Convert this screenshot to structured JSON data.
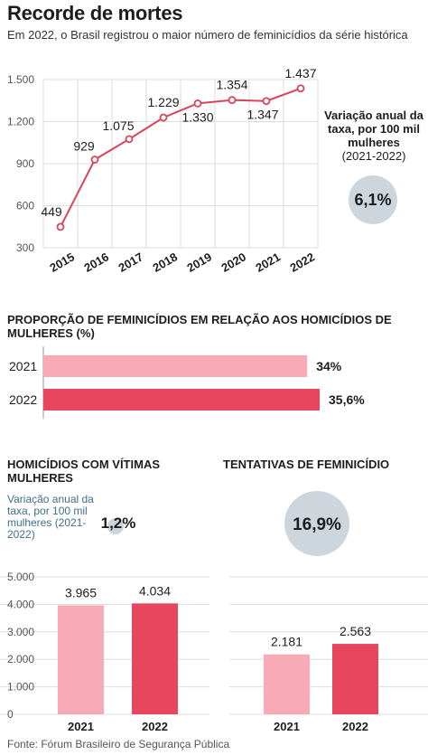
{
  "header": {
    "title": "Recorde de mortes",
    "subtitle": "Em 2022, o Brasil registrou o maior número de feminicídios da série histórica"
  },
  "colors": {
    "line": "#d6455d",
    "bar_2021": "#f8aab7",
    "bar_2022": "#e8455e",
    "bubble": "#ced6dd",
    "grid": "#dddddd",
    "note": "#3f6f8a"
  },
  "rate_box_1": {
    "label_bold": "Variação anual da taxa, por 100 mil mulheres",
    "label_period": "(2021-2022)",
    "value": "6,1%"
  },
  "section_proportion": {
    "title": "PROPORÇÃO DE FEMINICÍDIOS EM RELAÇÃO AOS HOMICÍDIOS DE MULHERES (%)"
  },
  "section_homicides": {
    "title": "HOMICÍDIOS COM VÍTIMAS MULHERES",
    "rate_label": "Variação anual da taxa, por 100 mil mulheres (2021-2022)",
    "rate_value": "1,2%"
  },
  "section_attempts": {
    "title": "TENTATIVAS DE FEMINICÍDIO",
    "rate_value": "16,9%"
  },
  "source": "Fonte: Fórum Brasileiro de Segurança Pública",
  "chart_data": [
    {
      "type": "line",
      "x": [
        "2015",
        "2016",
        "2017",
        "2018",
        "2019",
        "2020",
        "2021",
        "2022"
      ],
      "series": [
        {
          "values": [
            449,
            929,
            1075,
            1229,
            1330,
            1354,
            1347,
            1437
          ],
          "labels": [
            "449",
            "929",
            "1.075",
            "1.229",
            "1.330",
            "1.354",
            "1.347",
            "1.437"
          ]
        }
      ],
      "yticks": [
        300,
        600,
        900,
        1200,
        1500
      ],
      "ytick_labels": [
        "300",
        "600",
        "900",
        "1.200",
        "1.500"
      ],
      "ylim": [
        300,
        1500
      ]
    },
    {
      "type": "bar",
      "orientation": "horizontal",
      "categories": [
        "2021",
        "2022"
      ],
      "values": [
        34,
        35.6
      ],
      "value_labels": [
        "34%",
        "35,6%"
      ],
      "xlim": [
        0,
        35.6
      ]
    },
    {
      "type": "bar",
      "categories": [
        "2021",
        "2022"
      ],
      "values": [
        3965,
        4034
      ],
      "value_labels": [
        "3.965",
        "4.034"
      ],
      "yticks": [
        0,
        1000,
        2000,
        3000,
        4000,
        5000
      ],
      "ytick_labels": [
        "0",
        "1.000",
        "2.000",
        "3.000",
        "4.000",
        "5.000"
      ],
      "ylim": [
        0,
        5000
      ]
    },
    {
      "type": "bar",
      "categories": [
        "2021",
        "2022"
      ],
      "values": [
        2181,
        2563
      ],
      "value_labels": [
        "2.181",
        "2.563"
      ],
      "ylim": [
        0,
        5000
      ]
    }
  ]
}
